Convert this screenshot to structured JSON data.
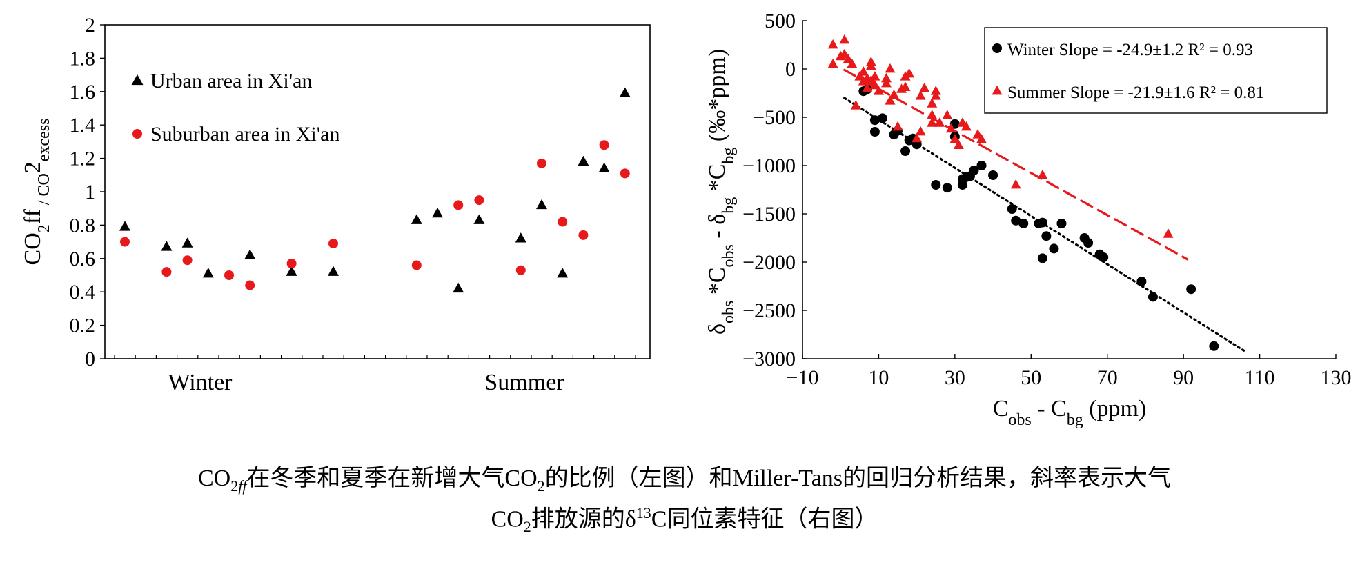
{
  "chart_data": [
    {
      "type": "scatter",
      "ylabel_parts": [
        "CO",
        "2",
        "ff",
        " / CO",
        "2",
        "excess"
      ],
      "ylim": [
        0,
        2
      ],
      "yticks": [
        "0",
        "0.2",
        "0.4",
        "0.6",
        "0.8",
        "1",
        "1.2",
        "1.4",
        "1.6",
        "1.8",
        "2"
      ],
      "groups": [
        "Winter",
        "Summer"
      ],
      "legend": [
        "Urban area in Xi'an",
        "Suburban area in Xi'an"
      ],
      "series": [
        {
          "name": "Urban area in Xi'an",
          "marker": "triangle",
          "color": "#000000",
          "points": [
            {
              "x": 1,
              "y": 0.79
            },
            {
              "x": 3,
              "y": 0.67
            },
            {
              "x": 4,
              "y": 0.69
            },
            {
              "x": 5,
              "y": 0.51
            },
            {
              "x": 7,
              "y": 0.62
            },
            {
              "x": 9,
              "y": 0.52
            },
            {
              "x": 11,
              "y": 0.52
            },
            {
              "x": 15,
              "y": 0.83
            },
            {
              "x": 16,
              "y": 0.87
            },
            {
              "x": 17,
              "y": 0.42
            },
            {
              "x": 18,
              "y": 0.83
            },
            {
              "x": 20,
              "y": 0.72
            },
            {
              "x": 21,
              "y": 0.92
            },
            {
              "x": 22,
              "y": 0.51
            },
            {
              "x": 23,
              "y": 1.18
            },
            {
              "x": 24,
              "y": 1.14
            },
            {
              "x": 25,
              "y": 1.59
            }
          ]
        },
        {
          "name": "Suburban area in Xi'an",
          "marker": "circle",
          "color": "#e8191b",
          "points": [
            {
              "x": 1,
              "y": 0.7
            },
            {
              "x": 3,
              "y": 0.52
            },
            {
              "x": 4,
              "y": 0.59
            },
            {
              "x": 6,
              "y": 0.5
            },
            {
              "x": 7,
              "y": 0.44
            },
            {
              "x": 9,
              "y": 0.57
            },
            {
              "x": 11,
              "y": 0.69
            },
            {
              "x": 15,
              "y": 0.56
            },
            {
              "x": 17,
              "y": 0.92
            },
            {
              "x": 18,
              "y": 0.95
            },
            {
              "x": 20,
              "y": 0.53
            },
            {
              "x": 21,
              "y": 1.17
            },
            {
              "x": 22,
              "y": 0.82
            },
            {
              "x": 23,
              "y": 0.74
            },
            {
              "x": 24,
              "y": 1.28
            },
            {
              "x": 25,
              "y": 1.11
            }
          ]
        }
      ]
    },
    {
      "type": "scatter",
      "xlabel_parts": [
        "C",
        "obs",
        " -  C",
        "bg",
        " (ppm)"
      ],
      "ylabel_parts": [
        "δ",
        "obs",
        " *C",
        "obs",
        " - δ",
        "bg",
        " *C",
        "bg",
        " (‰*ppm)"
      ],
      "xlim": [
        -10,
        130
      ],
      "ylim": [
        -3000,
        500
      ],
      "xticks": [
        "−10",
        "10",
        "30",
        "50",
        "70",
        "90",
        "110",
        "130"
      ],
      "yticks": [
        "−3000",
        "−2500",
        "−2000",
        "−1500",
        "−1000",
        "−500",
        "0",
        "500"
      ],
      "legend": [
        {
          "name": "Winter",
          "stats": "Slope = -24.9±1.2   R² = 0.93"
        },
        {
          "name": "Summer",
          "stats": "Slope = -21.9±1.6   R² = 0.81"
        }
      ],
      "series": [
        {
          "name": "Winter",
          "marker": "circle",
          "color": "#000000",
          "trendline": {
            "style": "dotted",
            "x": [
              1,
              106
            ],
            "y": [
              -300,
              -2920
            ]
          },
          "points": [
            [
              6,
              -230
            ],
            [
              7,
              -210
            ],
            [
              9,
              -650
            ],
            [
              9,
              -530
            ],
            [
              11,
              -510
            ],
            [
              14,
              -680
            ],
            [
              15,
              -640
            ],
            [
              17,
              -850
            ],
            [
              18,
              -740
            ],
            [
              19,
              -720
            ],
            [
              20,
              -780
            ],
            [
              25,
              -1200
            ],
            [
              28,
              -1230
            ],
            [
              30,
              -570
            ],
            [
              30,
              -700
            ],
            [
              32,
              -1140
            ],
            [
              32,
              -1200
            ],
            [
              33,
              -1120
            ],
            [
              34,
              -1110
            ],
            [
              35,
              -1050
            ],
            [
              37,
              -1000
            ],
            [
              40,
              -1100
            ],
            [
              45,
              -1450
            ],
            [
              46,
              -1570
            ],
            [
              48,
              -1600
            ],
            [
              52,
              -1600
            ],
            [
              53,
              -1960
            ],
            [
              53,
              -1590
            ],
            [
              54,
              -1730
            ],
            [
              56,
              -1860
            ],
            [
              58,
              -1600
            ],
            [
              64,
              -1750
            ],
            [
              65,
              -1800
            ],
            [
              68,
              -1920
            ],
            [
              69,
              -1950
            ],
            [
              79,
              -2200
            ],
            [
              82,
              -2360
            ],
            [
              92,
              -2280
            ],
            [
              98,
              -2870
            ]
          ]
        },
        {
          "name": "Summer",
          "marker": "triangle",
          "color": "#e8191b",
          "trendline": {
            "style": "dashed",
            "x": [
              1,
              91
            ],
            "y": [
              -10,
              -1970
            ]
          },
          "points": [
            [
              -2,
              250
            ],
            [
              -2,
              50
            ],
            [
              0,
              130
            ],
            [
              1,
              300
            ],
            [
              1,
              150
            ],
            [
              2,
              100
            ],
            [
              3,
              50
            ],
            [
              4,
              -380
            ],
            [
              5,
              -80
            ],
            [
              6,
              -130
            ],
            [
              6,
              -30
            ],
            [
              7,
              -200
            ],
            [
              7,
              -100
            ],
            [
              8,
              -120
            ],
            [
              8,
              30
            ],
            [
              8,
              70
            ],
            [
              9,
              -170
            ],
            [
              9,
              -80
            ],
            [
              10,
              -230
            ],
            [
              12,
              -150
            ],
            [
              12,
              -100
            ],
            [
              13,
              -330
            ],
            [
              13,
              0
            ],
            [
              14,
              -270
            ],
            [
              15,
              -600
            ],
            [
              16,
              -210
            ],
            [
              17,
              -190
            ],
            [
              17,
              -80
            ],
            [
              18,
              -50
            ],
            [
              20,
              -720
            ],
            [
              21,
              -280
            ],
            [
              21,
              -650
            ],
            [
              22,
              -200
            ],
            [
              24,
              -480
            ],
            [
              24,
              -360
            ],
            [
              24,
              -560
            ],
            [
              25,
              -230
            ],
            [
              25,
              -280
            ],
            [
              26,
              -560
            ],
            [
              28,
              -480
            ],
            [
              29,
              -620
            ],
            [
              30,
              -730
            ],
            [
              31,
              -790
            ],
            [
              32,
              -560
            ],
            [
              33,
              -600
            ],
            [
              36,
              -680
            ],
            [
              37,
              -730
            ],
            [
              46,
              -1200
            ],
            [
              53,
              -1100
            ],
            [
              86,
              -1710
            ]
          ]
        }
      ]
    }
  ],
  "caption": {
    "line1": {
      "p1": "CO",
      "sub1": "2",
      "sub1b": "ff",
      "p2": "在冬季和夏季在新增大气CO",
      "sub2": "2",
      "p3": "的比例（左图）和Miller-Tans的回归分析结果，斜率表示大气"
    },
    "line2": {
      "p1": "CO",
      "sub1": "2",
      "p2": "排放源的δ",
      "sup1": "13",
      "p3": "C同位素特征（右图）"
    }
  }
}
